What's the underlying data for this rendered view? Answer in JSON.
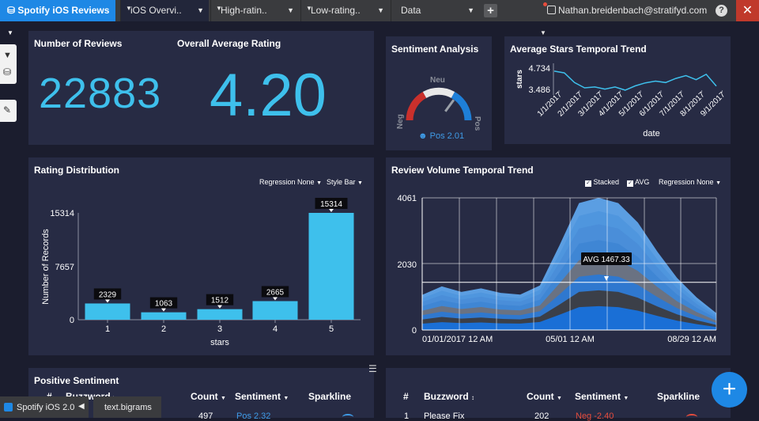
{
  "topbar": {
    "brand": "Spotify iOS Reviews",
    "tabs": [
      {
        "label": "iOS Overvi.."
      },
      {
        "label": "High-ratin.."
      },
      {
        "label": "Low-rating.."
      },
      {
        "label": "Data"
      }
    ],
    "user_email": "Nathan.breidenbach@stratifyd.com"
  },
  "kpi": {
    "reviews_title": "Number of Reviews",
    "reviews_value": "22883",
    "avg_title": "Overall Average Rating",
    "avg_value": "4.20"
  },
  "sentiment": {
    "title": "Sentiment Analysis",
    "neg": "Neg",
    "neu": "Neu",
    "pos": "Pos",
    "value_label": "Pos 2.01",
    "needle_value": 2.01,
    "range": [
      -5,
      5
    ]
  },
  "avg_stars": {
    "title": "Average Stars Temporal Trend",
    "ylabel": "stars",
    "xlabel": "date",
    "yticks": [
      "4.734",
      "3.486"
    ],
    "xticks": [
      "1/1/2017",
      "2/1/2017",
      "3/1/2017",
      "4/1/2017",
      "5/1/2017",
      "6/1/2017",
      "7/1/2017",
      "8/1/2017",
      "9/1/2017"
    ]
  },
  "rating_dist": {
    "title": "Rating Distribution",
    "regression": "Regression None",
    "style": "Style Bar",
    "ylabel": "Number of Records",
    "xlabel": "stars",
    "yticks": [
      "15314",
      "7657",
      "0"
    ]
  },
  "volume": {
    "title": "Review Volume Temporal Trend",
    "stacked": "Stacked",
    "avg": "AVG",
    "regression": "Regression None",
    "yticks": [
      "4061",
      "2030",
      "0"
    ],
    "xticks": [
      "01/01/2017 12 AM",
      "05/01 12 AM",
      "08/29 12 AM"
    ],
    "avg_label": "AVG 1467.33"
  },
  "positive": {
    "title": "Positive Sentiment",
    "headers": [
      "#",
      "Buzzword",
      "Count",
      "Sentiment",
      "Sparkline"
    ],
    "row_count": "497",
    "row_sent": "Pos 2.32"
  },
  "negative": {
    "headers": [
      "#",
      "Buzzword",
      "Count",
      "Sentiment",
      "Sparkline"
    ],
    "row_num": "1",
    "row_word": "Please Fix",
    "row_count": "202",
    "row_sent": "Neg -2.40"
  },
  "status": {
    "app": "Spotify iOS 2.0",
    "field": "text.bigrams"
  },
  "colors": {
    "accent": "#1e88e5",
    "bar": "#3ec0ec",
    "background": "#1b1d2e",
    "panel": "#272b44",
    "close": "#c0392b"
  },
  "chart_data": [
    {
      "type": "bar",
      "title": "Rating Distribution",
      "xlabel": "stars",
      "ylabel": "Number of Records",
      "categories": [
        "1",
        "2",
        "3",
        "4",
        "5"
      ],
      "values": [
        2329,
        1063,
        1512,
        2665,
        15314
      ],
      "ylim": [
        0,
        15314
      ]
    },
    {
      "type": "line",
      "title": "Average Stars Temporal Trend",
      "xlabel": "date",
      "ylabel": "stars",
      "x": [
        "2017-01-01",
        "2017-01-15",
        "2017-02-01",
        "2017-02-15",
        "2017-03-01",
        "2017-03-15",
        "2017-04-01",
        "2017-04-15",
        "2017-05-01",
        "2017-05-15",
        "2017-06-01",
        "2017-06-15",
        "2017-07-01",
        "2017-07-15",
        "2017-08-01",
        "2017-08-15",
        "2017-09-01"
      ],
      "values": [
        4.56,
        4.46,
        3.92,
        3.62,
        3.67,
        3.55,
        3.67,
        3.49,
        3.73,
        3.9,
        4.0,
        3.92,
        4.15,
        4.31,
        4.08,
        4.38,
        3.72
      ],
      "ylim": [
        3.0,
        5.0
      ]
    },
    {
      "type": "area",
      "title": "Review Volume Temporal Trend",
      "x": [
        "2017-01-01",
        "2017-01-29",
        "2017-02-26",
        "2017-03-26",
        "2017-04-23",
        "2017-05-07",
        "2017-05-21",
        "2017-06-04",
        "2017-06-11",
        "2017-06-18",
        "2017-06-25",
        "2017-07-02",
        "2017-07-16",
        "2017-07-30",
        "2017-08-13",
        "2017-08-29"
      ],
      "values": [
        1080,
        1340,
        1170,
        1280,
        1140,
        1090,
        1370,
        2600,
        3900,
        4061,
        3900,
        3300,
        2400,
        1600,
        1000,
        520
      ],
      "ylim": [
        0,
        4061
      ],
      "avg": 1467.33
    }
  ]
}
